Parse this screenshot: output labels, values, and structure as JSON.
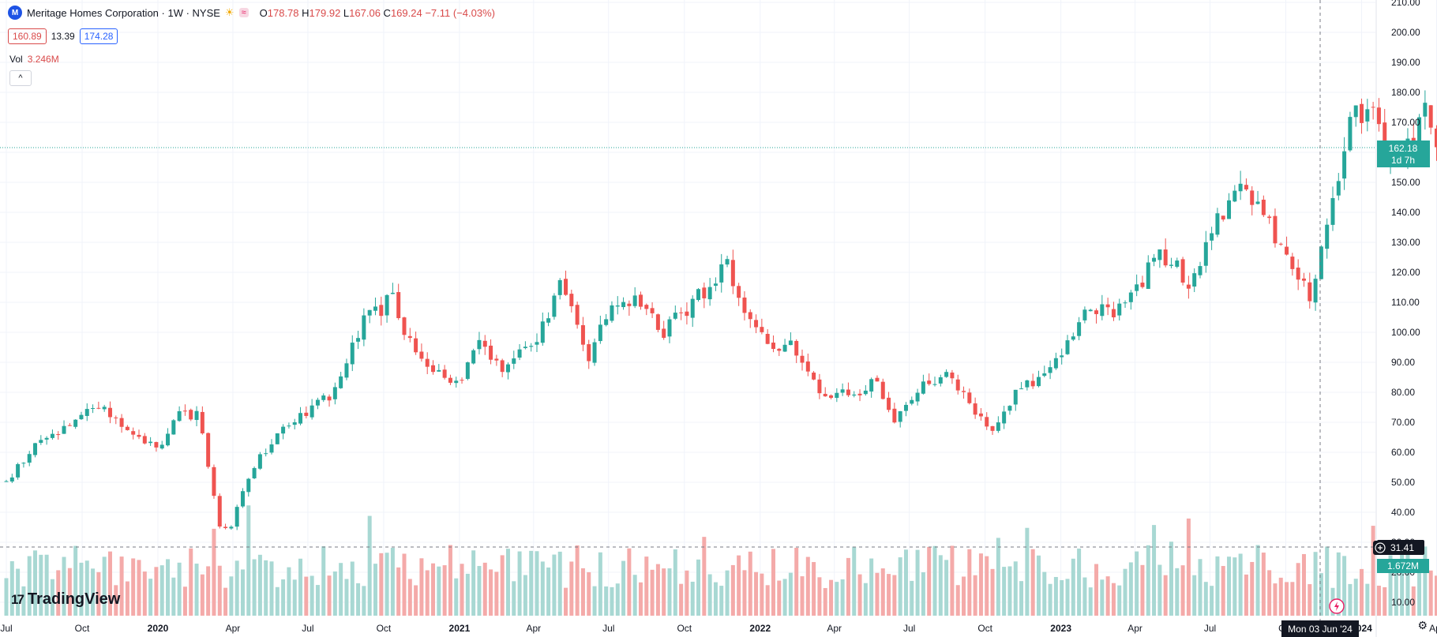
{
  "header": {
    "logo_letter": "M",
    "symbol": "Meritage Homes Corporation · 1W · NYSE",
    "sun_icon": "sun-icon",
    "wave_icon": "≈",
    "open_label": "O",
    "open": "178.78",
    "high_label": "H",
    "high": "179.92",
    "low_label": "L",
    "low": "167.06",
    "close_label": "C",
    "close": "169.24",
    "change": "−7.11 (−4.03%)"
  },
  "prices": {
    "bid": "160.89",
    "spread": "13.39",
    "ask": "174.28"
  },
  "volume": {
    "label": "Vol",
    "value": "3.246M"
  },
  "collapse_icon": "^",
  "brand": {
    "mark": "17",
    "name": "TradingView"
  },
  "settings_icon": "⚙",
  "colors": {
    "up": "#26a69a",
    "down": "#ef5350",
    "up_vol": "#a8d8d3",
    "down_vol": "#f4aaa9",
    "accent": "#2962ff"
  },
  "chart_data": {
    "type": "candlestick",
    "interval": "1W",
    "y_axis": {
      "min": 10,
      "max": 210,
      "ticks": [
        "210.00",
        "200.00",
        "190.00",
        "180.00",
        "170.00",
        "160.00",
        "150.00",
        "140.00",
        "130.00",
        "120.00",
        "110.00",
        "100.00",
        "90.00",
        "80.00",
        "70.00",
        "60.00",
        "50.00",
        "40.00",
        "30.00",
        "20.00",
        "10.00"
      ]
    },
    "x_axis": {
      "start": "2019-07-01",
      "end": "2024-06-10",
      "ticks": [
        "Jul",
        "Oct",
        "2020",
        "Apr",
        "Jul",
        "Oct",
        "2021",
        "Apr",
        "Jul",
        "Oct",
        "2022",
        "Apr",
        "Jul",
        "Oct",
        "2023",
        "Apr",
        "Jul",
        "Oct",
        "2024",
        "Apr"
      ]
    },
    "price_path": [
      [
        "2019-07-01",
        50
      ],
      [
        "2019-08-05",
        62
      ],
      [
        "2019-10-01",
        72
      ],
      [
        "2019-10-28",
        75
      ],
      [
        "2019-12-02",
        67
      ],
      [
        "2019-12-30",
        61
      ],
      [
        "2020-01-27",
        72
      ],
      [
        "2020-02-20",
        73
      ],
      [
        "2020-03-16",
        35
      ],
      [
        "2020-03-30",
        36
      ],
      [
        "2020-04-27",
        56
      ],
      [
        "2020-06-01",
        69
      ],
      [
        "2020-07-06",
        75
      ],
      [
        "2020-08-03",
        80
      ],
      [
        "2020-09-07",
        104
      ],
      [
        "2020-09-28",
        108
      ],
      [
        "2020-10-12",
        114
      ],
      [
        "2020-10-26",
        99
      ],
      [
        "2020-12-07",
        86
      ],
      [
        "2021-01-04",
        84
      ],
      [
        "2021-01-25",
        97
      ],
      [
        "2021-02-22",
        88
      ],
      [
        "2021-04-05",
        98
      ],
      [
        "2021-05-03",
        116
      ],
      [
        "2021-06-07",
        92
      ],
      [
        "2021-07-05",
        110
      ],
      [
        "2021-08-02",
        112
      ],
      [
        "2021-09-06",
        100
      ],
      [
        "2021-10-04",
        108
      ],
      [
        "2021-11-01",
        116
      ],
      [
        "2021-11-22",
        122
      ],
      [
        "2021-12-06",
        110
      ],
      [
        "2022-01-10",
        96
      ],
      [
        "2022-02-07",
        96
      ],
      [
        "2022-02-28",
        88
      ],
      [
        "2022-03-21",
        78
      ],
      [
        "2022-05-02",
        80
      ],
      [
        "2022-05-23",
        84
      ],
      [
        "2022-06-13",
        70
      ],
      [
        "2022-07-11",
        80
      ],
      [
        "2022-08-15",
        88
      ],
      [
        "2022-09-12",
        75
      ],
      [
        "2022-10-10",
        68
      ],
      [
        "2022-11-07",
        80
      ],
      [
        "2022-12-12",
        86
      ],
      [
        "2023-01-16",
        99
      ],
      [
        "2023-02-06",
        109
      ],
      [
        "2023-03-06",
        105
      ],
      [
        "2023-04-03",
        114
      ],
      [
        "2023-05-01",
        127
      ],
      [
        "2023-06-05",
        117
      ],
      [
        "2023-07-10",
        137
      ],
      [
        "2023-08-07",
        149
      ],
      [
        "2023-09-04",
        138
      ],
      [
        "2023-10-02",
        126
      ],
      [
        "2023-10-30",
        111
      ],
      [
        "2023-11-13",
        130
      ],
      [
        "2023-12-04",
        150
      ],
      [
        "2023-12-18",
        174
      ],
      [
        "2024-01-15",
        172
      ],
      [
        "2024-02-05",
        155
      ],
      [
        "2024-02-26",
        162
      ],
      [
        "2024-03-18",
        175
      ],
      [
        "2024-04-08",
        152
      ],
      [
        "2024-04-29",
        182
      ],
      [
        "2024-05-13",
        183
      ],
      [
        "2024-05-27",
        169
      ],
      [
        "2024-06-10",
        162
      ]
    ],
    "last_price": {
      "value": "162.18",
      "countdown": "1d 7h"
    },
    "crosshair": {
      "price": "31.41",
      "date": "Mon 03 Jun '24"
    },
    "volume_last": "1.672M"
  }
}
